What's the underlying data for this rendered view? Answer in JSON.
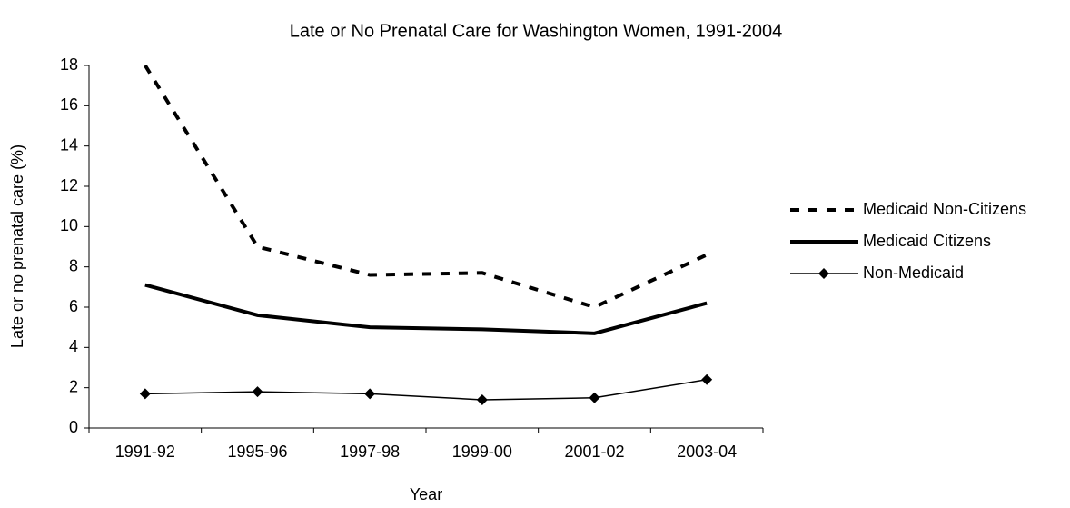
{
  "chart_data": {
    "type": "line",
    "title": "Late or No Prenatal Care for Washington Women, 1991-2004",
    "x_label": "Year",
    "y_label": "Late or no prenatal care (%)",
    "categories": [
      "1991-92",
      "1995-96",
      "1997-98",
      "1999-00",
      "2001-02",
      "2003-04"
    ],
    "series": [
      {
        "name": "Medicaid Non-Citizens",
        "color": "#000000",
        "line_style": "dashed",
        "line_width": 4,
        "marker": "none",
        "values": [
          18,
          9.0,
          7.6,
          7.7,
          6.0,
          8.6
        ]
      },
      {
        "name": "Medicaid Citizens",
        "color": "#000000",
        "line_style": "solid",
        "line_width": 4,
        "marker": "none",
        "values": [
          7.1,
          5.6,
          5.0,
          4.9,
          4.7,
          6.2
        ]
      },
      {
        "name": "Non-Medicaid",
        "color": "#000000",
        "line_style": "solid",
        "line_width": 1.5,
        "marker": "diamond",
        "values": [
          1.7,
          1.8,
          1.7,
          1.4,
          1.5,
          2.4
        ]
      }
    ],
    "ylim": [
      0,
      18
    ],
    "yticks": [
      0,
      2,
      4,
      6,
      8,
      10,
      12,
      14,
      16,
      18
    ],
    "grid": false,
    "legend": "right"
  }
}
